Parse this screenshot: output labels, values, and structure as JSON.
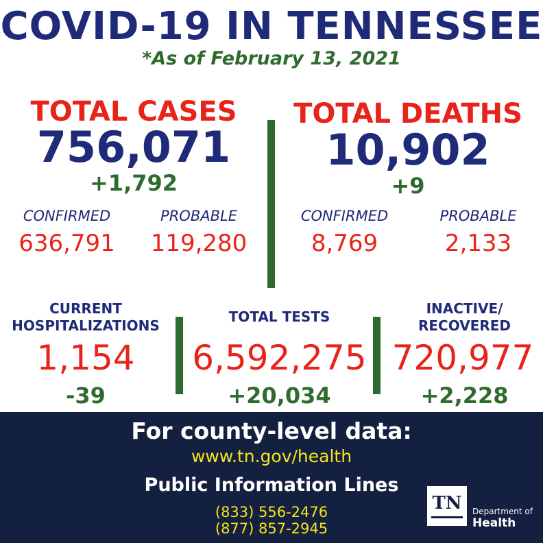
{
  "header": {
    "title": "COVID-19 IN TENNESSEE",
    "subtitle": "*As of February 13, 2021"
  },
  "cases": {
    "label": "TOTAL CASES",
    "total": "756,071",
    "delta": "+1,792",
    "confirmed_label": "CONFIRMED",
    "confirmed_value": "636,791",
    "probable_label": "PROBABLE",
    "probable_value": "119,280"
  },
  "deaths": {
    "label": "TOTAL DEATHS",
    "total": "10,902",
    "delta": "+9",
    "confirmed_label": "CONFIRMED",
    "confirmed_value": "8,769",
    "probable_label": "PROBABLE",
    "probable_value": "2,133"
  },
  "hospitalizations": {
    "label_line1": "CURRENT",
    "label_line2": "HOSPITALIZATIONS",
    "value": "1,154",
    "delta": "-39"
  },
  "tests": {
    "label": "TOTAL TESTS",
    "value": "6,592,275",
    "delta": "+20,034"
  },
  "recovered": {
    "label_line1": "INACTIVE/",
    "label_line2": "RECOVERED",
    "value": "720,977",
    "delta": "+2,228"
  },
  "footer": {
    "heading": "For county-level data:",
    "link": "www.tn.gov/health",
    "phone_heading": "Public Information Lines",
    "phone1": "(833) 556-2476",
    "phone2": "(877) 857-2945"
  },
  "logo": {
    "mark": "TN",
    "line1": "Department of",
    "line2": "Health"
  },
  "colors": {
    "navy": "#1f2a78",
    "red": "#e8231a",
    "green": "#2e6b2e",
    "footer_bg": "#142040",
    "yellow": "#f5e51c"
  }
}
